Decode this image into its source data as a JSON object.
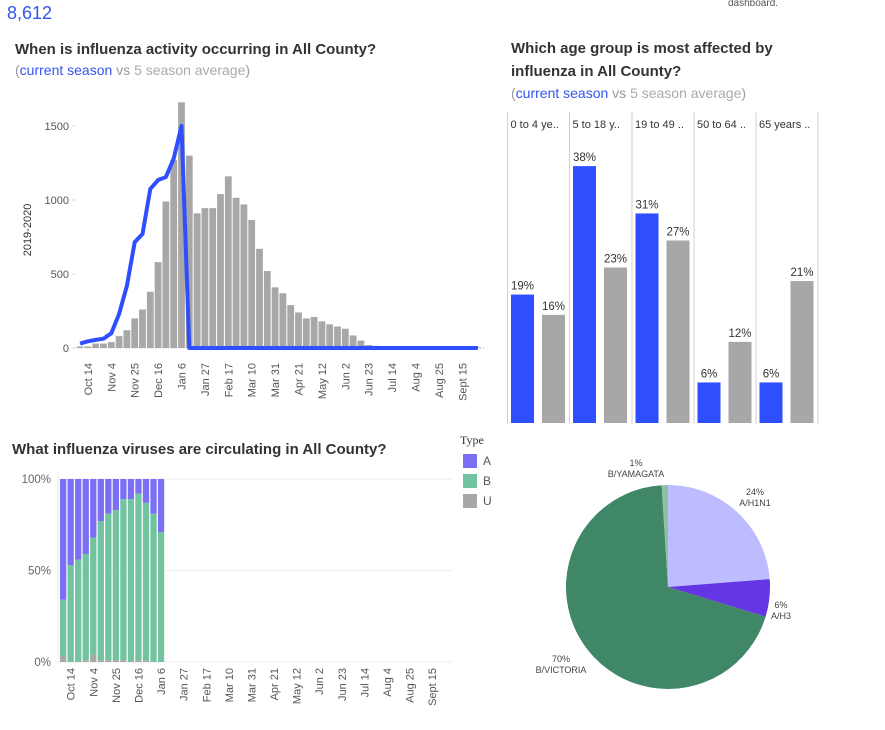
{
  "header": {
    "kpi_value": "8,612",
    "note": "dashboard."
  },
  "activity": {
    "title": "When is influenza activity occurring in All County?",
    "subtitle": {
      "open": "(",
      "current": "current season",
      "vs": " vs ",
      "average": "5 season average",
      "close": ")"
    }
  },
  "age": {
    "title_line1": "Which age group is most affected by",
    "title_line2": "influenza in All County?",
    "subtitle": {
      "open": "(",
      "current": "current season",
      "vs": " vs ",
      "average": "5 season average",
      "close": ")"
    }
  },
  "viruses": {
    "title": "What influenza viruses are circulating in All County?"
  },
  "legend": {
    "title": "Type",
    "items": [
      {
        "label": "A",
        "color": "#7b6ff5"
      },
      {
        "label": "B",
        "color": "#72c4a0"
      },
      {
        "label": "U",
        "color": "#a7a7a7"
      }
    ]
  },
  "colors": {
    "current": "#2f4fff",
    "average": "#a7a7a7"
  },
  "chart_data": [
    {
      "type": "bar+line",
      "ylabel": "2019-2020",
      "ylim": [
        0,
        1700
      ],
      "yticks": [
        "0",
        "500",
        "1000",
        "1500"
      ],
      "ytick_values": [
        0,
        500,
        1000,
        1500
      ],
      "xtick_labels": [
        "Oct 14",
        "Nov 4",
        "Nov 25",
        "Dec 16",
        "Jan 6",
        "Jan 27",
        "Feb 17",
        "Mar 10",
        "Mar 31",
        "Apr 21",
        "May 12",
        "Jun 2",
        "Jun 23",
        "Jul 14",
        "Aug 4",
        "Aug 25",
        "Sept 15"
      ],
      "weeks": 52,
      "series": [
        {
          "kind": "bar",
          "values": [
            10,
            10,
            30,
            30,
            40,
            80,
            120,
            200,
            260,
            380,
            580,
            990,
            1270,
            1660,
            1300,
            910,
            945,
            945,
            1040,
            1160,
            1015,
            970,
            865,
            670,
            520,
            410,
            370,
            290,
            240,
            200,
            210,
            180,
            160,
            145,
            130,
            85,
            50,
            20,
            15,
            5,
            5,
            5,
            5,
            5,
            5,
            5,
            5,
            5,
            5,
            5,
            5,
            5
          ]
        },
        {
          "kind": "line",
          "values": [
            30,
            45,
            55,
            63,
            100,
            230,
            420,
            715,
            770,
            1075,
            1135,
            1155,
            1280,
            1500,
            0,
            0,
            0,
            0,
            0,
            0,
            0,
            0,
            0,
            0,
            0,
            0,
            0,
            0,
            0,
            0,
            0,
            0,
            0,
            0,
            0,
            0,
            0,
            0,
            0,
            0,
            0,
            0,
            0,
            0,
            0,
            0,
            0,
            0,
            0,
            0,
            0,
            0
          ]
        }
      ]
    },
    {
      "type": "bar",
      "categories": [
        "0 to 4 ye..",
        "5 to 18 y..",
        "19 to 49 ..",
        "50 to 64 ..",
        "65 years .."
      ],
      "series": [
        {
          "kind": "current",
          "values": [
            19,
            38,
            31,
            6,
            6
          ],
          "labels": [
            "19%",
            "38%",
            "31%",
            "6%",
            "6%"
          ]
        },
        {
          "kind": "average",
          "values": [
            16,
            23,
            27,
            12,
            21
          ],
          "labels": [
            "16%",
            "23%",
            "27%",
            "12%",
            "21%"
          ]
        }
      ]
    },
    {
      "type": "stacked-bar",
      "yticks": [
        "0%",
        "50%",
        "100%"
      ],
      "ytick_values": [
        0,
        50,
        100
      ],
      "xtick_labels": [
        "Oct 14",
        "Nov 4",
        "Nov 25",
        "Dec 16",
        "Jan 6",
        "Jan 27",
        "Feb 17",
        "Mar 10",
        "Mar 31",
        "Apr 21",
        "May 12",
        "Jun 2",
        "Jun 23",
        "Jul 14",
        "Aug 4",
        "Aug 25",
        "Sept 15"
      ],
      "weeks": 52,
      "series": [
        {
          "name": "U",
          "values": [
            3,
            0,
            0,
            1,
            4,
            1,
            1,
            1,
            1,
            0,
            1,
            1,
            0,
            0
          ]
        },
        {
          "name": "B",
          "values": [
            31,
            53,
            56,
            58,
            64,
            76,
            80,
            82,
            88,
            89,
            91,
            86,
            81,
            71
          ]
        },
        {
          "name": "A",
          "values": [
            66,
            47,
            44,
            41,
            32,
            23,
            19,
            17,
            11,
            11,
            8,
            13,
            19,
            29
          ]
        }
      ]
    },
    {
      "type": "pie",
      "slices": [
        {
          "pct": "24%",
          "label": "A/H1N1",
          "value": 24,
          "color": "#bdbcff"
        },
        {
          "pct": "6%",
          "label": "A/H3",
          "value": 6,
          "color": "#6435e3"
        },
        {
          "pct": "70%",
          "label": "B/VICTORIA",
          "value": 70,
          "color": "#3f8766"
        },
        {
          "pct": "1%",
          "label": "B/YAMAGATA",
          "value": 1,
          "color": "#8fbfa6"
        }
      ]
    }
  ]
}
